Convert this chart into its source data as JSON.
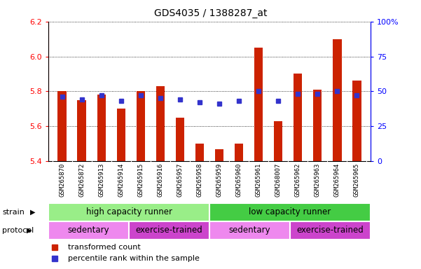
{
  "title": "GDS4035 / 1388287_at",
  "samples": [
    "GSM265870",
    "GSM265872",
    "GSM265913",
    "GSM265914",
    "GSM265915",
    "GSM265916",
    "GSM265957",
    "GSM265958",
    "GSM265959",
    "GSM265960",
    "GSM265961",
    "GSM268007",
    "GSM265962",
    "GSM265963",
    "GSM265964",
    "GSM265965"
  ],
  "transformed_count": [
    5.8,
    5.75,
    5.78,
    5.7,
    5.8,
    5.83,
    5.65,
    5.5,
    5.47,
    5.5,
    6.05,
    5.63,
    5.9,
    5.81,
    6.1,
    5.86
  ],
  "percentile_rank": [
    46,
    44,
    47,
    43,
    47,
    45,
    44,
    42,
    41,
    43,
    50,
    43,
    48,
    48,
    50,
    47
  ],
  "bar_bottom": 5.4,
  "ylim": [
    5.4,
    6.2
  ],
  "yticks_left": [
    5.4,
    5.6,
    5.8,
    6.0,
    6.2
  ],
  "yticks_right": [
    0,
    25,
    50,
    75,
    100
  ],
  "bar_color": "#cc2200",
  "dot_color": "#3333cc",
  "plot_bg": "#ffffff",
  "tick_area_bg": "#d0d0d0",
  "strain_groups": [
    {
      "label": "high capacity runner",
      "start": 0,
      "end": 8,
      "color": "#99ee88"
    },
    {
      "label": "low capacity runner",
      "start": 8,
      "end": 16,
      "color": "#44cc44"
    }
  ],
  "protocol_groups": [
    {
      "label": "sedentary",
      "start": 0,
      "end": 4,
      "color": "#ee88ee"
    },
    {
      "label": "exercise-trained",
      "start": 4,
      "end": 8,
      "color": "#cc44cc"
    },
    {
      "label": "sedentary",
      "start": 8,
      "end": 12,
      "color": "#ee88ee"
    },
    {
      "label": "exercise-trained",
      "start": 12,
      "end": 16,
      "color": "#cc44cc"
    }
  ],
  "legend_red_label": "transformed count",
  "legend_blue_label": "percentile rank within the sample",
  "strain_label": "strain",
  "protocol_label": "protocol",
  "bar_width": 0.45
}
